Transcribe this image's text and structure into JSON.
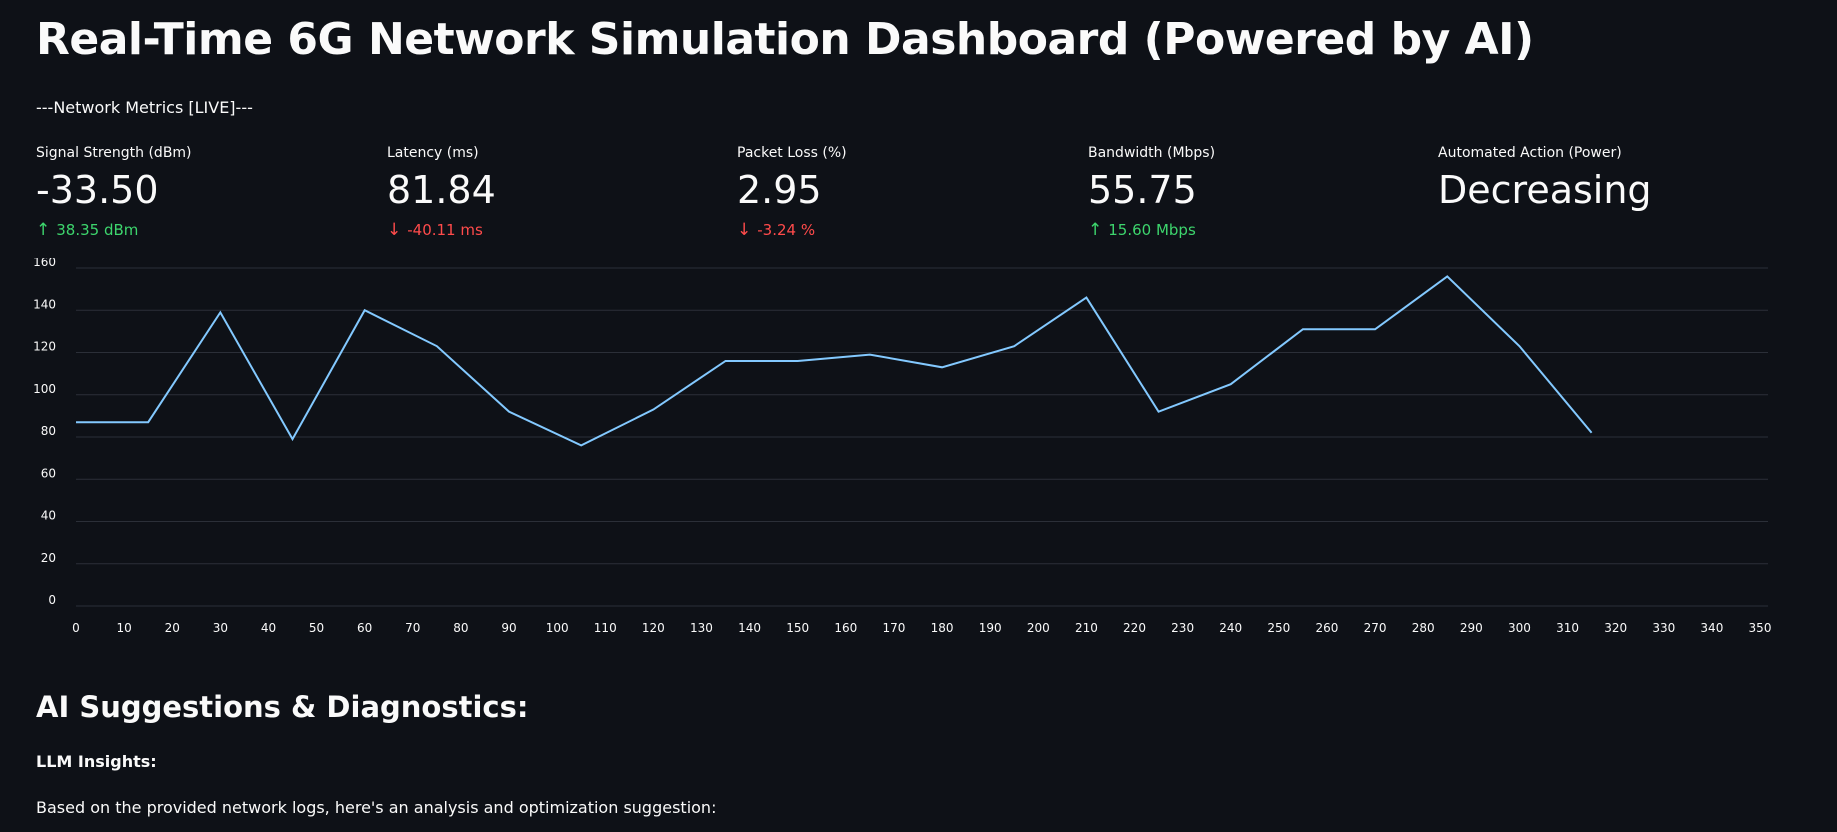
{
  "header": {
    "title": "Real-Time 6G Network Simulation Dashboard (Powered by AI)",
    "subtitle": "---Network Metrics [LIVE]---"
  },
  "metrics": [
    {
      "label": "Signal Strength (dBm)",
      "value": "-33.50",
      "delta": "38.35 dBm",
      "direction": "up"
    },
    {
      "label": "Latency (ms)",
      "value": "81.84",
      "delta": "-40.11 ms",
      "direction": "down"
    },
    {
      "label": "Packet Loss (%)",
      "value": "2.95",
      "delta": "-3.24 %",
      "direction": "down"
    },
    {
      "label": "Bandwidth (Mbps)",
      "value": "55.75",
      "delta": "15.60 Mbps",
      "direction": "up"
    },
    {
      "label": "Automated Action (Power)",
      "value": "Decreasing",
      "delta": "",
      "direction": ""
    }
  ],
  "colors": {
    "background": "#0e1117",
    "line": "#83c9ff",
    "up": "#3dd56d",
    "down": "#ff4b4b"
  },
  "chart_data": {
    "type": "line",
    "xlim": [
      0,
      350
    ],
    "ylim": [
      0,
      160
    ],
    "x_ticks": [
      0,
      10,
      20,
      30,
      40,
      50,
      60,
      70,
      80,
      90,
      100,
      110,
      120,
      130,
      140,
      150,
      160,
      170,
      180,
      190,
      200,
      210,
      220,
      230,
      240,
      250,
      260,
      270,
      280,
      290,
      300,
      310,
      320,
      330,
      340,
      350
    ],
    "y_ticks": [
      0,
      20,
      40,
      60,
      80,
      100,
      120,
      140,
      160
    ],
    "grid": true,
    "series": [
      {
        "x": [
          0,
          15,
          30,
          45,
          60,
          75,
          90,
          105,
          120,
          135,
          150,
          165,
          180,
          195,
          210,
          225,
          240,
          255,
          270,
          285,
          300,
          315
        ],
        "y": [
          87,
          87,
          139,
          79,
          140,
          123,
          92,
          76,
          93,
          116,
          116,
          119,
          113,
          123,
          146,
          92,
          105,
          131,
          131,
          156,
          123,
          82
        ]
      }
    ]
  },
  "ai_section": {
    "title": "AI Suggestions & Diagnostics:",
    "insights_label": "LLM Insights:",
    "insights_text": "Based on the provided network logs, here's an analysis and optimization suggestion:"
  }
}
